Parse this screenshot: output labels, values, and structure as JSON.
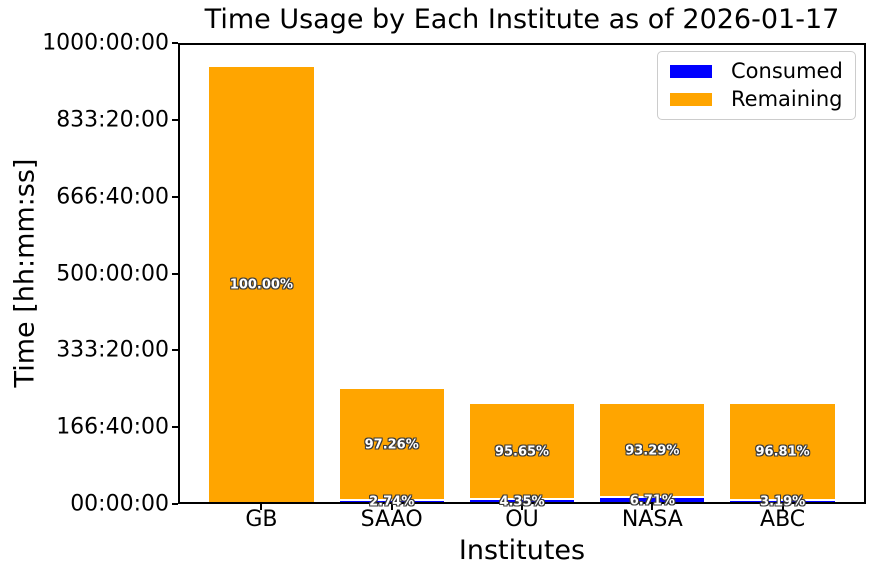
{
  "chart_data": {
    "type": "bar",
    "stacked": true,
    "title": "Time Usage by Each Institute as of 2026-01-17",
    "xlabel": "Institutes",
    "ylabel": "Time [hh:mm:ss]",
    "categories": [
      "GB",
      "SAAO",
      "OU",
      "NASA",
      "ABC"
    ],
    "series": [
      {
        "name": "Consumed",
        "color": "#0000ff",
        "values_hours": [
          0,
          6.85,
          9.43,
          14.54,
          6.91
        ],
        "percent_labels": [
          "",
          "2.74%",
          "4.35%",
          "6.71%",
          "3.19%"
        ]
      },
      {
        "name": "Remaining",
        "color": "#ffa500",
        "values_hours": [
          948,
          243.15,
          207.27,
          202.16,
          209.79
        ],
        "percent_labels": [
          "100.00%",
          "97.26%",
          "95.65%",
          "93.29%",
          "96.81%"
        ]
      }
    ],
    "totals_hours_estimated": [
      948,
      250,
      216.7,
      216.7,
      216.7
    ],
    "ylim_hours": [
      0,
      1000
    ],
    "y_ticks": [
      {
        "hours": 0,
        "label": "00:00:00"
      },
      {
        "hours": 166.6667,
        "label": "166:40:00"
      },
      {
        "hours": 333.3333,
        "label": "333:20:00"
      },
      {
        "hours": 500,
        "label": "500:00:00"
      },
      {
        "hours": 666.6667,
        "label": "666:40:00"
      },
      {
        "hours": 833.3333,
        "label": "833:20:00"
      },
      {
        "hours": 1000,
        "label": "1000:00:00"
      }
    ],
    "grid": false,
    "legend_position": "upper right",
    "bar_label_style": {
      "color": "#ffffff",
      "outline": "#3a3a3a",
      "weight": "bold"
    }
  }
}
